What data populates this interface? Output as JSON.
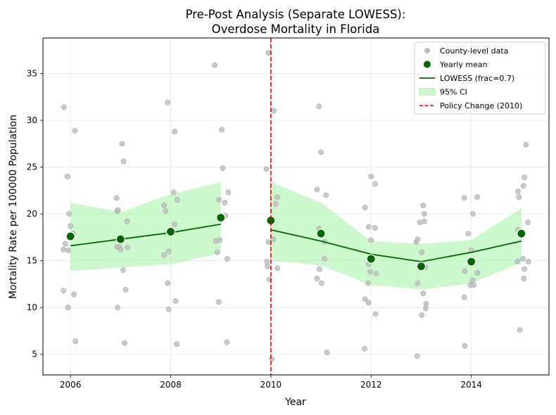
{
  "chart_data": {
    "type": "scatter",
    "title_lines": [
      "Pre-Post Analysis (Separate LOWESS):",
      "Overdose Mortality in Florida"
    ],
    "xlabel": "Year",
    "ylabel": "Mortality Rate per 100000 Population",
    "xlim": [
      2005.45,
      2015.55
    ],
    "ylim": [
      2.8,
      38.8
    ],
    "xticks": [
      2006,
      2008,
      2010,
      2012,
      2014
    ],
    "yticks": [
      5,
      10,
      15,
      20,
      25,
      30,
      35
    ],
    "grid": true,
    "legend_position": "top-right",
    "colors": {
      "county": "#bfbfbf",
      "mean": "#006400",
      "lowess": "#006400",
      "ci_fill": "#90ee90",
      "policy": "#e00000"
    },
    "legend": [
      {
        "key": "county",
        "label": "County-level data"
      },
      {
        "key": "mean",
        "label": "Yearly mean"
      },
      {
        "key": "lowess",
        "label": "LOWESS (frac=0.7)"
      },
      {
        "key": "ci",
        "label": "95% CI"
      },
      {
        "key": "policy",
        "label": "Policy Change (2010)"
      }
    ],
    "policy_year": 2010,
    "county_points": [
      [
        2005.87,
        31.4
      ],
      [
        2005.94,
        24.0
      ],
      [
        2005.97,
        20.0
      ],
      [
        2006.0,
        18.7
      ],
      [
        2005.9,
        16.8
      ],
      [
        2005.86,
        16.2
      ],
      [
        2005.96,
        16.1
      ],
      [
        2006.05,
        17.9
      ],
      [
        2005.86,
        11.8
      ],
      [
        2006.07,
        11.4
      ],
      [
        2005.95,
        10.0
      ],
      [
        2006.1,
        6.4
      ],
      [
        2006.09,
        28.9
      ],
      [
        2007.03,
        27.5
      ],
      [
        2007.06,
        25.6
      ],
      [
        2006.92,
        21.7
      ],
      [
        2006.93,
        20.3
      ],
      [
        2006.95,
        20.4
      ],
      [
        2007.13,
        19.2
      ],
      [
        2006.93,
        16.5
      ],
      [
        2006.97,
        16.5
      ],
      [
        2007.0,
        16.2
      ],
      [
        2007.14,
        16.4
      ],
      [
        2007.05,
        14.0
      ],
      [
        2007.1,
        11.9
      ],
      [
        2006.94,
        10.0
      ],
      [
        2007.08,
        6.2
      ],
      [
        2007.94,
        31.9
      ],
      [
        2008.08,
        28.8
      ],
      [
        2008.06,
        22.3
      ],
      [
        2008.13,
        21.5
      ],
      [
        2007.87,
        20.9
      ],
      [
        2007.9,
        20.3
      ],
      [
        2008.08,
        18.9
      ],
      [
        2007.87,
        15.6
      ],
      [
        2007.96,
        16.0
      ],
      [
        2007.94,
        12.6
      ],
      [
        2008.1,
        10.7
      ],
      [
        2007.96,
        9.8
      ],
      [
        2008.12,
        6.1
      ],
      [
        2008.88,
        35.9
      ],
      [
        2009.02,
        29.0
      ],
      [
        2009.04,
        24.9
      ],
      [
        2009.15,
        22.3
      ],
      [
        2009.08,
        21.2
      ],
      [
        2008.96,
        21.5
      ],
      [
        2009.09,
        19.8
      ],
      [
        2008.9,
        17.1
      ],
      [
        2008.98,
        17.2
      ],
      [
        2008.93,
        15.9
      ],
      [
        2009.13,
        15.2
      ],
      [
        2008.96,
        10.6
      ],
      [
        2009.12,
        6.3
      ],
      [
        2009.95,
        37.2
      ],
      [
        2010.06,
        31.0
      ],
      [
        2009.91,
        24.8
      ],
      [
        2010.13,
        21.8
      ],
      [
        2010.1,
        21.1
      ],
      [
        2009.95,
        17.0
      ],
      [
        2010.05,
        17.3
      ],
      [
        2009.92,
        14.9
      ],
      [
        2009.93,
        14.4
      ],
      [
        2010.13,
        14.2
      ],
      [
        2009.97,
        13.0
      ],
      [
        2010.02,
        4.5
      ],
      [
        2010.96,
        31.5
      ],
      [
        2011.0,
        26.6
      ],
      [
        2011.1,
        22.0
      ],
      [
        2010.92,
        22.6
      ],
      [
        2010.96,
        18.4
      ],
      [
        2011.07,
        17.0
      ],
      [
        2011.07,
        15.2
      ],
      [
        2010.97,
        14.1
      ],
      [
        2010.92,
        13.1
      ],
      [
        2011.01,
        12.6
      ],
      [
        2011.12,
        5.2
      ],
      [
        2011.88,
        20.7
      ],
      [
        2012.0,
        24.0
      ],
      [
        2012.08,
        23.2
      ],
      [
        2011.95,
        18.6
      ],
      [
        2012.08,
        18.5
      ],
      [
        2012.0,
        17.2
      ],
      [
        2011.95,
        14.6
      ],
      [
        2011.98,
        13.8
      ],
      [
        2012.1,
        13.6
      ],
      [
        2011.94,
        12.6
      ],
      [
        2011.88,
        10.9
      ],
      [
        2011.95,
        10.5
      ],
      [
        2012.09,
        9.3
      ],
      [
        2011.87,
        5.6
      ],
      [
        2013.04,
        20.9
      ],
      [
        2013.06,
        20.0
      ],
      [
        2013.06,
        19.2
      ],
      [
        2012.97,
        19.1
      ],
      [
        2012.9,
        17.0
      ],
      [
        2012.93,
        17.3
      ],
      [
        2013.01,
        15.9
      ],
      [
        2013.08,
        14.3
      ],
      [
        2012.93,
        12.6
      ],
      [
        2013.04,
        11.5
      ],
      [
        2013.1,
        10.4
      ],
      [
        2013.09,
        9.9
      ],
      [
        2013.01,
        9.2
      ],
      [
        2012.92,
        4.8
      ],
      [
        2013.86,
        21.7
      ],
      [
        2014.12,
        21.8
      ],
      [
        2014.03,
        20.0
      ],
      [
        2013.94,
        17.9
      ],
      [
        2014.0,
        16.1
      ],
      [
        2013.87,
        13.9
      ],
      [
        2014.12,
        13.7
      ],
      [
        2013.98,
        12.4
      ],
      [
        2014.05,
        12.4
      ],
      [
        2013.86,
        11.1
      ],
      [
        2013.87,
        5.9
      ],
      [
        2014.03,
        12.9
      ],
      [
        2014.93,
        22.4
      ],
      [
        2015.04,
        23.0
      ],
      [
        2015.06,
        23.9
      ],
      [
        2015.09,
        27.4
      ],
      [
        2014.95,
        21.8
      ],
      [
        2015.13,
        19.1
      ],
      [
        2014.93,
        18.3
      ],
      [
        2015.03,
        15.2
      ],
      [
        2014.92,
        14.9
      ],
      [
        2015.14,
        14.9
      ],
      [
        2015.06,
        14.1
      ],
      [
        2015.05,
        13.1
      ],
      [
        2014.97,
        7.6
      ]
    ],
    "yearly_means": {
      "x": [
        2006,
        2007,
        2008,
        2009,
        2010,
        2011,
        2012,
        2013,
        2014,
        2015
      ],
      "y": [
        17.6,
        17.3,
        18.1,
        19.6,
        19.3,
        17.9,
        15.2,
        14.4,
        14.9,
        17.9
      ]
    },
    "lowess": [
      {
        "segment": "pre",
        "x": [
          2006,
          2007,
          2008,
          2009
        ],
        "y": [
          16.6,
          17.3,
          18.0,
          18.9
        ],
        "ci_lower": [
          13.9,
          14.3,
          14.6,
          15.8
        ],
        "ci_upper": [
          21.2,
          20.2,
          22.1,
          23.4
        ]
      },
      {
        "segment": "post",
        "x": [
          2010,
          2011,
          2012,
          2013,
          2014,
          2015
        ],
        "y": [
          18.3,
          17.1,
          15.7,
          14.9,
          15.9,
          17.1
        ],
        "ci_lower": [
          15.0,
          14.5,
          12.4,
          11.9,
          12.6,
          14.8
        ],
        "ci_upper": [
          23.4,
          21.2,
          17.1,
          16.8,
          17.2,
          20.6
        ]
      }
    ]
  }
}
